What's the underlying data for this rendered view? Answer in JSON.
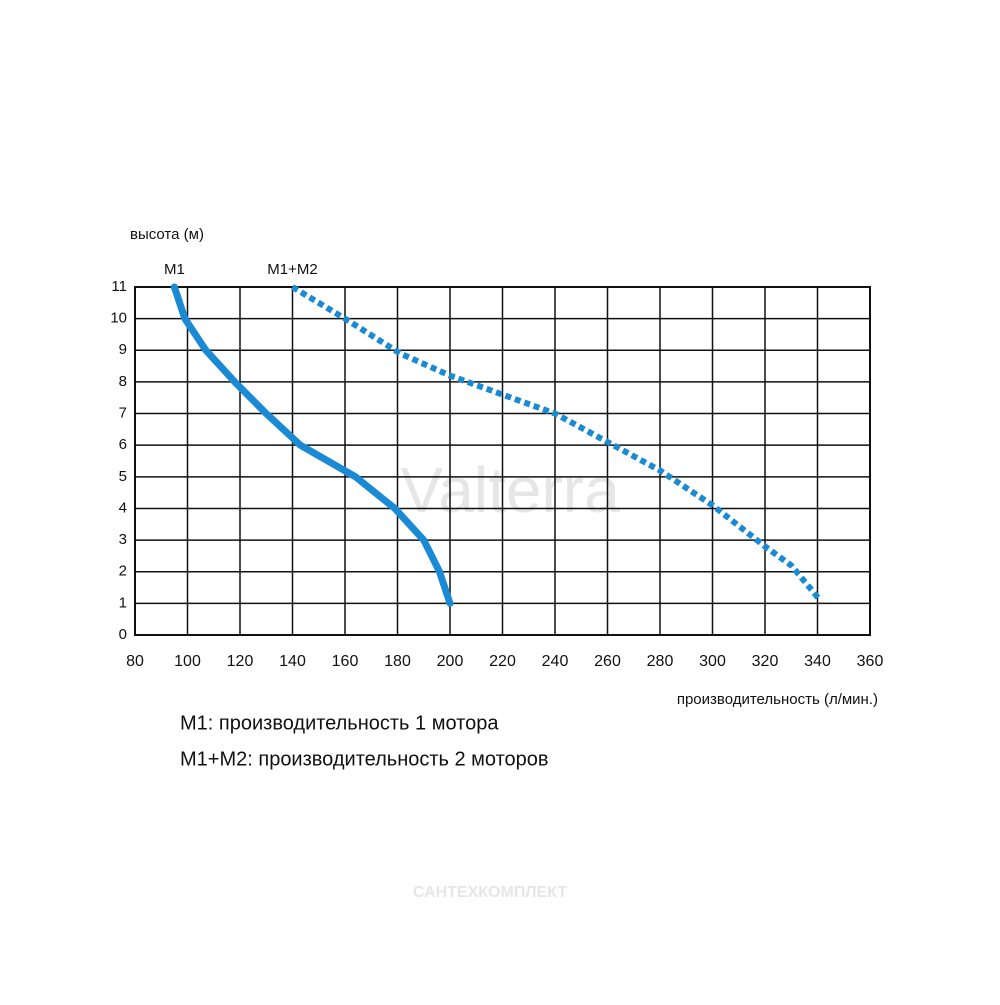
{
  "chart_data": {
    "type": "line",
    "y_label": "высота (м)",
    "x_label": "производительность (л/мин.)",
    "xlim": [
      80,
      360
    ],
    "xticks": [
      80,
      100,
      120,
      140,
      160,
      180,
      200,
      220,
      240,
      260,
      280,
      300,
      320,
      340,
      360
    ],
    "ylim": [
      0,
      11
    ],
    "yticks": [
      0,
      1,
      2,
      3,
      4,
      5,
      6,
      7,
      8,
      9,
      10,
      11
    ],
    "grid": true,
    "series": [
      {
        "name": "M1",
        "color": "#1a8ad4",
        "style": "solid",
        "x": [
          95,
          99,
          107,
          118,
          130,
          143,
          164,
          179,
          190,
          196,
          200
        ],
        "values": [
          11,
          10,
          9,
          8,
          7,
          6,
          5,
          4,
          3,
          2,
          1
        ]
      },
      {
        "name": "M1+M2",
        "color": "#1a8ad4",
        "style": "dotted",
        "x": [
          140,
          160,
          181,
          200,
          220,
          240,
          260,
          280,
          300,
          320,
          330,
          341
        ],
        "values": [
          11,
          10,
          8.9,
          8.2,
          7.6,
          7,
          6.1,
          5.2,
          4.1,
          2.8,
          2.2,
          1.1
        ]
      }
    ],
    "notes": [
      "M1: производительность 1 мотора",
      "M1+M2: производительность 2 моторов"
    ],
    "watermarks": [
      "Valterra",
      "САНТЕХКОМПЛЕКТ"
    ]
  }
}
